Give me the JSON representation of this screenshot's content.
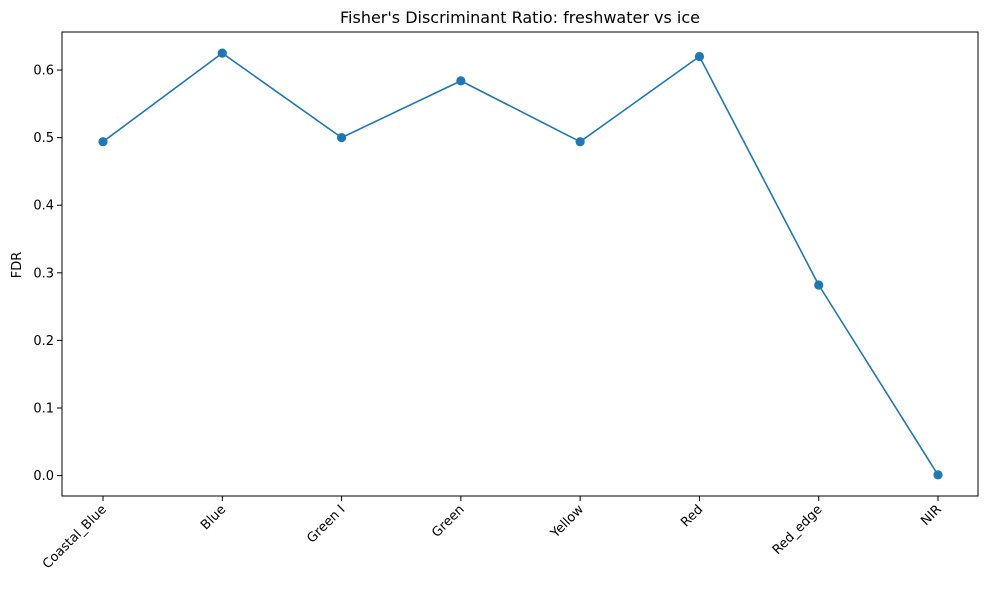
{
  "chart_data": {
    "type": "line",
    "title": "Fisher's Discriminant Ratio: freshwater vs ice",
    "xlabel": "",
    "ylabel": "FDR",
    "categories": [
      "Coastal_Blue",
      "Blue",
      "Green I",
      "Green",
      "Yellow",
      "Red",
      "Red_edge",
      "NIR"
    ],
    "series": [
      {
        "values": [
          0.494,
          0.625,
          0.5,
          0.584,
          0.494,
          0.62,
          0.282,
          0.001
        ],
        "color": "#1f77b4",
        "marker": "circle"
      }
    ],
    "ylim": [
      -0.0302,
      0.6563
    ],
    "yticks": [
      0.0,
      0.1,
      0.2,
      0.3,
      0.4,
      0.5,
      0.6
    ],
    "ytick_labels": [
      "0.0",
      "0.1",
      "0.2",
      "0.3",
      "0.4",
      "0.5",
      "0.6"
    ],
    "grid": false,
    "legend": "none",
    "xtick_rotation": 45
  }
}
